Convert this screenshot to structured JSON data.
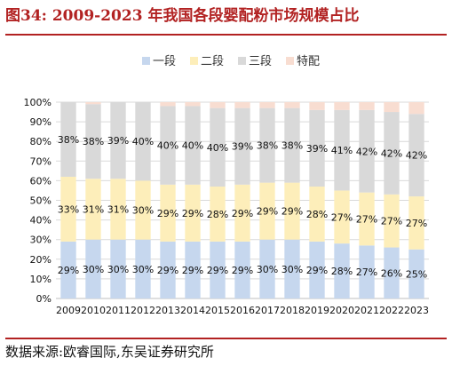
{
  "title": "图34: 2009-2023 年我国各段婴配粉市场规模占比",
  "source": "数据来源:欧睿国际,东吴证券研究所",
  "colors": {
    "title": "#b22222",
    "stage1": "#c6d7ee",
    "stage2": "#fdeeba",
    "stage3": "#d9d9d9",
    "special": "#f8ddd1"
  },
  "chart_data": {
    "type": "bar",
    "stacked": true,
    "categories": [
      "2009",
      "2010",
      "2011",
      "2012",
      "2013",
      "2014",
      "2015",
      "2016",
      "2017",
      "2018",
      "2019",
      "2020",
      "2021",
      "2022",
      "2023"
    ],
    "series": [
      {
        "name": "一段",
        "values": [
          29,
          30,
          30,
          30,
          29,
          29,
          29,
          29,
          30,
          30,
          29,
          28,
          27,
          26,
          25
        ],
        "labels": [
          "29%",
          "30%",
          "30%",
          "30%",
          "29%",
          "29%",
          "29%",
          "29%",
          "30%",
          "30%",
          "29%",
          "28%",
          "27%",
          "26%",
          "25%"
        ]
      },
      {
        "name": "二段",
        "values": [
          33,
          31,
          31,
          30,
          29,
          29,
          28,
          29,
          29,
          29,
          28,
          27,
          27,
          27,
          27
        ],
        "labels": [
          "33%",
          "31%",
          "31%",
          "30%",
          "29%",
          "29%",
          "28%",
          "29%",
          "29%",
          "29%",
          "28%",
          "27%",
          "27%",
          "27%",
          "27%"
        ]
      },
      {
        "name": "三段",
        "values": [
          38,
          38,
          39,
          40,
          40,
          40,
          40,
          39,
          38,
          38,
          39,
          41,
          42,
          42,
          42
        ],
        "labels": [
          "38%",
          "38%",
          "39%",
          "40%",
          "40%",
          "40%",
          "40%",
          "39%",
          "38%",
          "38%",
          "39%",
          "41%",
          "42%",
          "42%",
          "42%"
        ]
      },
      {
        "name": "特配",
        "values": [
          0,
          1,
          0,
          0,
          2,
          2,
          3,
          3,
          3,
          3,
          4,
          4,
          4,
          5,
          6
        ],
        "labels": []
      }
    ],
    "yticks": [
      "0%",
      "10%",
      "20%",
      "30%",
      "40%",
      "50%",
      "60%",
      "70%",
      "80%",
      "90%",
      "100%"
    ],
    "ylim": [
      0,
      100
    ],
    "legend": "top"
  }
}
